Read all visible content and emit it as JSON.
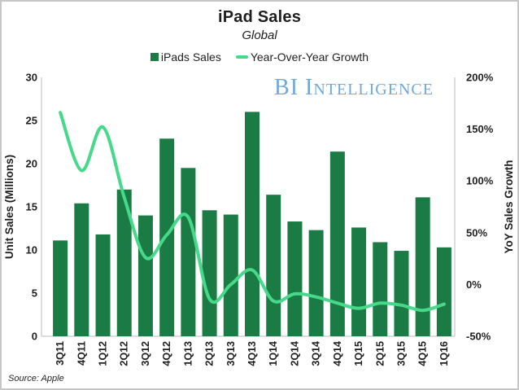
{
  "header": {
    "title": "iPad Sales",
    "subtitle": "Global"
  },
  "watermark": "BI Intelligence",
  "source": "Source: Apple",
  "legend": [
    {
      "label": "iPads Sales",
      "swatch": "bar-swatch"
    },
    {
      "label": "Year-Over-Year Growth",
      "swatch": "line-swatch"
    }
  ],
  "colors": {
    "bar": "#1B7B45",
    "line": "#47D98A",
    "watermark": "#6FA8DC",
    "axis_line": "#D2D2D2",
    "text": "#1F1F1F"
  },
  "chart_data": {
    "type": "bar",
    "subtype": "bar+line-combo",
    "title": "iPad Sales",
    "subtitle": "Global",
    "grid": false,
    "legend_position": "top",
    "categories": [
      "3Q11",
      "4Q11",
      "1Q12",
      "2Q12",
      "3Q12",
      "4Q12",
      "1Q13",
      "2Q13",
      "3Q13",
      "4Q13",
      "1Q14",
      "2Q14",
      "3Q14",
      "4Q14",
      "1Q15",
      "2Q15",
      "3Q15",
      "4Q15",
      "1Q16"
    ],
    "series": [
      {
        "name": "iPads Sales",
        "type": "bar",
        "axis": "left",
        "values": [
          11.1,
          15.4,
          11.8,
          17.0,
          14.0,
          22.9,
          19.5,
          14.6,
          14.1,
          26.0,
          16.4,
          13.3,
          12.3,
          21.4,
          12.6,
          10.9,
          9.9,
          16.1,
          10.3
        ]
      },
      {
        "name": "Year-Over-Year Growth",
        "type": "line",
        "axis": "right",
        "values": [
          166,
          110,
          152,
          84,
          26,
          48,
          65,
          -14,
          0,
          14,
          -16,
          -9,
          -12,
          -18,
          -23,
          -18,
          -20,
          -25,
          -19
        ]
      }
    ],
    "left_axis": {
      "label": "Unit Sales (Millions)",
      "min": 0,
      "max": 30,
      "tick_values": [
        0,
        5,
        10,
        15,
        20,
        25,
        30
      ],
      "tick_labels": [
        "0",
        "5",
        "10",
        "15",
        "20",
        "25",
        "30"
      ]
    },
    "right_axis": {
      "label": "YoY Sales Growth",
      "min": -50,
      "max": 200,
      "tick_values": [
        -50,
        0,
        50,
        100,
        150,
        200
      ],
      "tick_labels": [
        "-50%",
        "0%",
        "50%",
        "100%",
        "150%",
        "200%"
      ]
    }
  }
}
